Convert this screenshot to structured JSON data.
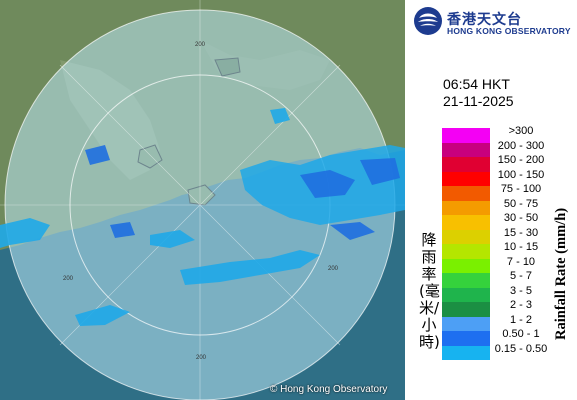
{
  "header": {
    "org_name_zh": "香港天文台",
    "org_name_en": "HONG KONG OBSERVATORY"
  },
  "observation": {
    "time": "06:54 HKT",
    "date": "21-11-2025"
  },
  "map": {
    "range_labels": [
      "200",
      "200",
      "200",
      "200"
    ],
    "copyright": "© Hong Kong Observatory",
    "colors": {
      "sea": "#2f6f86",
      "land": "#6f8a5c",
      "radar_disc": "#b9e6f4",
      "radar_ring": "#ffffff",
      "echo_light": "#1fa8e8",
      "echo_heavy": "#1f6fe0"
    }
  },
  "legend": {
    "title_zh": "降雨率(毫米/小時)",
    "title_en": "Rainfall Rate (mm/h)",
    "items": [
      {
        "label": ">300",
        "color": "#f400f4"
      },
      {
        "label": "200 - 300",
        "color": "#c8007e"
      },
      {
        "label": "150 - 200",
        "color": "#e00032"
      },
      {
        "label": "100 - 150",
        "color": "#ff0000"
      },
      {
        "label": "75 - 100",
        "color": "#f25a00"
      },
      {
        "label": "50 - 75",
        "color": "#f49b00"
      },
      {
        "label": "30 - 50",
        "color": "#f8c000"
      },
      {
        "label": "15 - 30",
        "color": "#dcd000"
      },
      {
        "label": "10 - 15",
        "color": "#b4e600"
      },
      {
        "label": "7 - 10",
        "color": "#7af000"
      },
      {
        "label": "5 - 7",
        "color": "#35d23c"
      },
      {
        "label": "3 - 5",
        "color": "#1fb44c"
      },
      {
        "label": "2 - 3",
        "color": "#1b8f43"
      },
      {
        "label": "1 - 2",
        "color": "#4d9ff5"
      },
      {
        "label": "0.50 - 1",
        "color": "#1e6ff0"
      },
      {
        "label": "0.15 - 0.50",
        "color": "#17b3f0"
      }
    ]
  }
}
